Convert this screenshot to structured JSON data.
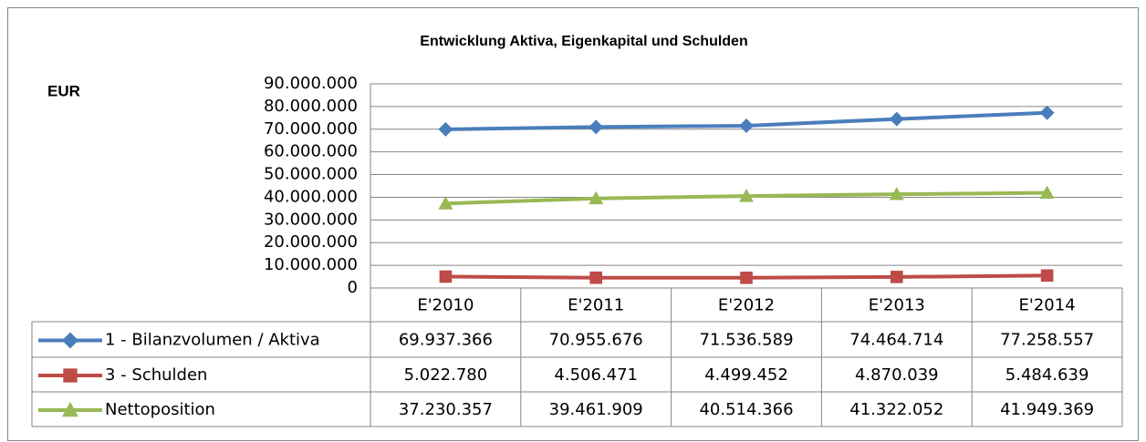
{
  "chart_data": {
    "type": "line",
    "title": "Entwicklung Aktiva, Eigenkapital und Schulden",
    "y_axis_label": "EUR",
    "categories": [
      "E'2010",
      "E'2011",
      "E'2012",
      "E'2013",
      "E'2014"
    ],
    "series": [
      {
        "name": "1 - Bilanzvolumen / Aktiva",
        "color": "#4a7ebb",
        "marker": "diamond",
        "values": [
          69937366,
          70955676,
          71536589,
          74464714,
          77258557
        ],
        "value_labels": [
          "69.937.366",
          "70.955.676",
          "71.536.589",
          "74.464.714",
          "77.258.557"
        ]
      },
      {
        "name": "3 - Schulden",
        "color": "#be4b48",
        "marker": "square",
        "values": [
          5022780,
          4506471,
          4499452,
          4870039,
          5484639
        ],
        "value_labels": [
          "5.022.780",
          "4.506.471",
          "4.499.452",
          "4.870.039",
          "5.484.639"
        ]
      },
      {
        "name": "Nettoposition",
        "color": "#98b954",
        "marker": "triangle",
        "values": [
          37230357,
          39461909,
          40514366,
          41322052,
          41949369
        ],
        "value_labels": [
          "37.230.357",
          "39.461.909",
          "40.514.366",
          "41.322.052",
          "41.949.369"
        ]
      }
    ],
    "ylim": [
      0,
      90000000
    ],
    "yticks": [
      0,
      {
        "value": 10000000,
        "label": "10.000.000"
      },
      {
        "value": 20000000,
        "label": "20.000.000"
      },
      {
        "value": 30000000,
        "label": "30.000.000"
      },
      {
        "value": 40000000,
        "label": "40.000.000"
      },
      {
        "value": 50000000,
        "label": "50.000.000"
      },
      {
        "value": 60000000,
        "label": "60.000.000"
      },
      {
        "value": 70000000,
        "label": "70.000.000"
      },
      {
        "value": 80000000,
        "label": "80.000.000"
      },
      {
        "value": 90000000,
        "label": "90.000.000"
      }
    ],
    "grid": true
  }
}
